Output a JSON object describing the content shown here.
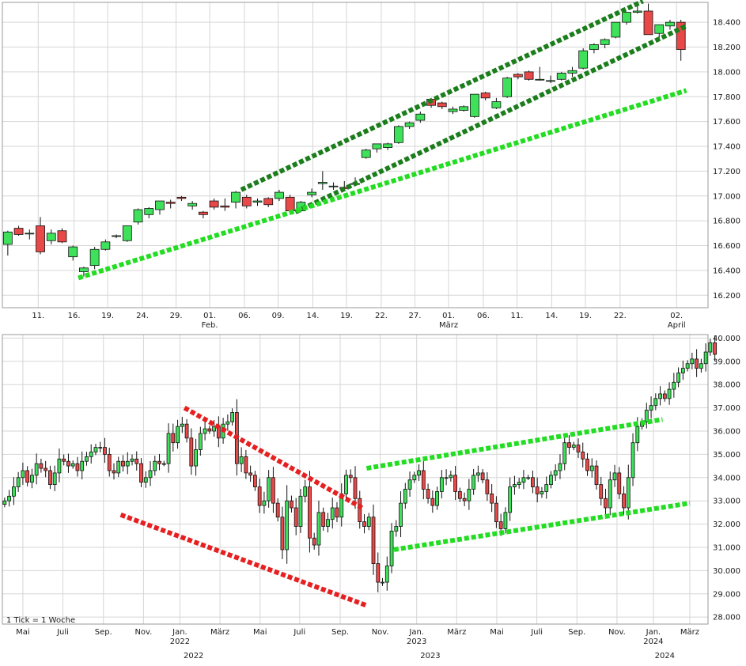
{
  "colors": {
    "up": "#3fe05a",
    "down": "#e84848",
    "grid": "#d6d6d6",
    "border": "#999999",
    "channel_dark": "#1b7d1b",
    "trend_light": "#22dd22",
    "trend_red": "#e62020",
    "label": "#1a1a1a",
    "footnote": "#9a9a9a"
  },
  "chart_data": [
    {
      "type": "candlestick",
      "name": "top-daily",
      "ylim": [
        16100,
        18560
      ],
      "y_ticks": [
        16200,
        16400,
        16600,
        16800,
        17000,
        17200,
        17400,
        17600,
        17800,
        18000,
        18200,
        18400
      ],
      "y_tick_labels": [
        "16.200",
        "16.400",
        "16.600",
        "16.800",
        "17.000",
        "17.200",
        "17.400",
        "17.600",
        "17.800",
        "18.000",
        "18.200",
        "18.400"
      ],
      "x_range": [
        0,
        65
      ],
      "x_ticks": [
        {
          "x": 3.3,
          "label": "11."
        },
        {
          "x": 6.6,
          "label": "16."
        },
        {
          "x": 9.7,
          "label": "19."
        },
        {
          "x": 12.9,
          "label": "24."
        },
        {
          "x": 16.0,
          "label": "29."
        },
        {
          "x": 19.1,
          "label": "01.",
          "sub": "Feb."
        },
        {
          "x": 22.3,
          "label": "06."
        },
        {
          "x": 25.4,
          "label": "09."
        },
        {
          "x": 28.6,
          "label": "14."
        },
        {
          "x": 31.7,
          "label": "19."
        },
        {
          "x": 34.9,
          "label": "22."
        },
        {
          "x": 38.0,
          "label": "27."
        },
        {
          "x": 41.1,
          "label": "01.",
          "sub": "März"
        },
        {
          "x": 44.3,
          "label": "06."
        },
        {
          "x": 47.4,
          "label": "11."
        },
        {
          "x": 50.6,
          "label": "14."
        },
        {
          "x": 53.7,
          "label": "19."
        },
        {
          "x": 56.9,
          "label": "22."
        },
        {
          "x": 62.1,
          "label": "02.",
          "sub": "April"
        }
      ],
      "candles": [
        {
          "x": 0,
          "o": 16610,
          "h": 16720,
          "l": 16520,
          "c": 16710
        },
        {
          "x": 1,
          "o": 16740,
          "h": 16760,
          "l": 16680,
          "c": 16690
        },
        {
          "x": 2,
          "o": 16700,
          "h": 16730,
          "l": 16650,
          "c": 16700
        },
        {
          "x": 3,
          "o": 16760,
          "h": 16830,
          "l": 16530,
          "c": 16550
        },
        {
          "x": 4,
          "o": 16640,
          "h": 16730,
          "l": 16610,
          "c": 16700
        },
        {
          "x": 5,
          "o": 16720,
          "h": 16740,
          "l": 16620,
          "c": 16630
        },
        {
          "x": 6,
          "o": 16510,
          "h": 16600,
          "l": 16480,
          "c": 16590
        },
        {
          "x": 7,
          "o": 16390,
          "h": 16430,
          "l": 16350,
          "c": 16420
        },
        {
          "x": 8,
          "o": 16440,
          "h": 16590,
          "l": 16410,
          "c": 16570
        },
        {
          "x": 9,
          "o": 16570,
          "h": 16650,
          "l": 16560,
          "c": 16630
        },
        {
          "x": 10,
          "o": 16680,
          "h": 16690,
          "l": 16660,
          "c": 16680
        },
        {
          "x": 11,
          "o": 16640,
          "h": 16760,
          "l": 16630,
          "c": 16760
        },
        {
          "x": 12,
          "o": 16790,
          "h": 16900,
          "l": 16770,
          "c": 16890
        },
        {
          "x": 13,
          "o": 16850,
          "h": 16910,
          "l": 16820,
          "c": 16900
        },
        {
          "x": 14,
          "o": 16890,
          "h": 16960,
          "l": 16850,
          "c": 16960
        },
        {
          "x": 15,
          "o": 16950,
          "h": 16970,
          "l": 16900,
          "c": 16940
        },
        {
          "x": 16,
          "o": 16990,
          "h": 17000,
          "l": 16960,
          "c": 16980
        },
        {
          "x": 17,
          "o": 16920,
          "h": 16960,
          "l": 16890,
          "c": 16940
        },
        {
          "x": 18,
          "o": 16870,
          "h": 16880,
          "l": 16820,
          "c": 16850
        },
        {
          "x": 19,
          "o": 16960,
          "h": 16980,
          "l": 16890,
          "c": 16910
        },
        {
          "x": 20,
          "o": 16920,
          "h": 16980,
          "l": 16880,
          "c": 16910
        },
        {
          "x": 21,
          "o": 16950,
          "h": 17040,
          "l": 16900,
          "c": 17030
        },
        {
          "x": 22,
          "o": 16990,
          "h": 17010,
          "l": 16900,
          "c": 16920
        },
        {
          "x": 23,
          "o": 16950,
          "h": 16980,
          "l": 16920,
          "c": 16960
        },
        {
          "x": 24,
          "o": 16980,
          "h": 16990,
          "l": 16910,
          "c": 16930
        },
        {
          "x": 25,
          "o": 16980,
          "h": 17050,
          "l": 16960,
          "c": 17030
        },
        {
          "x": 26,
          "o": 16990,
          "h": 17010,
          "l": 16870,
          "c": 16880
        },
        {
          "x": 27,
          "o": 16880,
          "h": 16960,
          "l": 16870,
          "c": 16950
        },
        {
          "x": 28,
          "o": 17010,
          "h": 17060,
          "l": 16990,
          "c": 17030
        },
        {
          "x": 29,
          "o": 17100,
          "h": 17200,
          "l": 17050,
          "c": 17110
        },
        {
          "x": 30,
          "o": 17080,
          "h": 17110,
          "l": 17050,
          "c": 17080
        },
        {
          "x": 31,
          "o": 17070,
          "h": 17120,
          "l": 17040,
          "c": 17060
        },
        {
          "x": 32,
          "o": 17100,
          "h": 17150,
          "l": 17080,
          "c": 17100
        },
        {
          "x": 33,
          "o": 17310,
          "h": 17380,
          "l": 17300,
          "c": 17370
        },
        {
          "x": 34,
          "o": 17380,
          "h": 17420,
          "l": 17350,
          "c": 17420
        },
        {
          "x": 35,
          "o": 17390,
          "h": 17430,
          "l": 17370,
          "c": 17420
        },
        {
          "x": 36,
          "o": 17430,
          "h": 17570,
          "l": 17420,
          "c": 17560
        },
        {
          "x": 37,
          "o": 17560,
          "h": 17600,
          "l": 17540,
          "c": 17590
        },
        {
          "x": 38,
          "o": 17610,
          "h": 17680,
          "l": 17590,
          "c": 17660
        },
        {
          "x": 39,
          "o": 17780,
          "h": 17790,
          "l": 17710,
          "c": 17730
        },
        {
          "x": 40,
          "o": 17750,
          "h": 17760,
          "l": 17700,
          "c": 17720
        },
        {
          "x": 41,
          "o": 17680,
          "h": 17720,
          "l": 17660,
          "c": 17700
        },
        {
          "x": 42,
          "o": 17690,
          "h": 17730,
          "l": 17680,
          "c": 17720
        },
        {
          "x": 43,
          "o": 17640,
          "h": 17820,
          "l": 17630,
          "c": 17820
        },
        {
          "x": 44,
          "o": 17830,
          "h": 17840,
          "l": 17770,
          "c": 17790
        },
        {
          "x": 45,
          "o": 17710,
          "h": 17790,
          "l": 17700,
          "c": 17760
        },
        {
          "x": 46,
          "o": 17800,
          "h": 17960,
          "l": 17790,
          "c": 17950
        },
        {
          "x": 47,
          "o": 17980,
          "h": 17990,
          "l": 17940,
          "c": 17960
        },
        {
          "x": 48,
          "o": 18000,
          "h": 18010,
          "l": 17930,
          "c": 17940
        },
        {
          "x": 49,
          "o": 17940,
          "h": 18040,
          "l": 17930,
          "c": 17940
        },
        {
          "x": 50,
          "o": 17930,
          "h": 17970,
          "l": 17910,
          "c": 17930
        },
        {
          "x": 51,
          "o": 17940,
          "h": 18000,
          "l": 17930,
          "c": 17990
        },
        {
          "x": 52,
          "o": 17990,
          "h": 18040,
          "l": 17960,
          "c": 18010
        },
        {
          "x": 53,
          "o": 18030,
          "h": 18190,
          "l": 18020,
          "c": 18170
        },
        {
          "x": 54,
          "o": 18180,
          "h": 18230,
          "l": 18150,
          "c": 18220
        },
        {
          "x": 55,
          "o": 18220,
          "h": 18270,
          "l": 18190,
          "c": 18260
        },
        {
          "x": 56,
          "o": 18280,
          "h": 18400,
          "l": 18270,
          "c": 18400
        },
        {
          "x": 57,
          "o": 18400,
          "h": 18480,
          "l": 18380,
          "c": 18480
        },
        {
          "x": 58,
          "o": 18480,
          "h": 18530,
          "l": 18470,
          "c": 18490
        },
        {
          "x": 59,
          "o": 18490,
          "h": 18550,
          "l": 18300,
          "c": 18300
        },
        {
          "x": 60,
          "o": 18310,
          "h": 18380,
          "l": 18270,
          "c": 18380
        },
        {
          "x": 61,
          "o": 18370,
          "h": 18420,
          "l": 18340,
          "c": 18400
        },
        {
          "x": 62,
          "o": 18400,
          "h": 18420,
          "l": 18090,
          "c": 18180
        }
      ],
      "trendlines": [
        {
          "style": "dark",
          "points": [
            [
              22,
              17050
            ],
            [
              59,
              18570
            ]
          ]
        },
        {
          "style": "dark",
          "points": [
            [
              27,
              16870
            ],
            [
              63,
              18370
            ]
          ]
        },
        {
          "style": "light",
          "points": [
            [
              7,
              16340
            ],
            [
              63,
              17850
            ]
          ]
        }
      ]
    },
    {
      "type": "candlestick",
      "name": "bottom-weekly",
      "ylim": [
        27700,
        40150
      ],
      "y_ticks": [
        28000,
        29000,
        30000,
        31000,
        32000,
        33000,
        34000,
        35000,
        36000,
        37000,
        38000,
        39000,
        40000
      ],
      "y_tick_labels": [
        "28.000",
        "29.000",
        "30.000",
        "31.000",
        "32.000",
        "33.000",
        "34.000",
        "35.000",
        "36.000",
        "37.000",
        "38.000",
        "39.000",
        "40.000"
      ],
      "x_range": [
        0,
        155
      ],
      "x_ticks": [
        {
          "x": 4.5,
          "label": "Mai"
        },
        {
          "x": 13.3,
          "label": "Juli"
        },
        {
          "x": 22.2,
          "label": "Sep."
        },
        {
          "x": 31.0,
          "label": "Nov."
        },
        {
          "x": 39.0,
          "label": "Jan.",
          "sub": "2022"
        },
        {
          "x": 47.8,
          "label": "März"
        },
        {
          "x": 56.6,
          "label": "Mai"
        },
        {
          "x": 65.3,
          "label": "Juli"
        },
        {
          "x": 74.2,
          "label": "Sep."
        },
        {
          "x": 83.0,
          "label": "Nov."
        },
        {
          "x": 91.0,
          "label": "Jan.",
          "sub": "2023"
        },
        {
          "x": 99.8,
          "label": "März"
        },
        {
          "x": 108.6,
          "label": "Mai"
        },
        {
          "x": 117.4,
          "label": "Juli"
        },
        {
          "x": 126.2,
          "label": "Sep."
        },
        {
          "x": 135.0,
          "label": "Nov."
        },
        {
          "x": 143.0,
          "label": "Jan.",
          "sub": "2024"
        },
        {
          "x": 151.0,
          "label": "März"
        }
      ],
      "years": [
        {
          "x": 42.0,
          "label": "2022"
        },
        {
          "x": 94.0,
          "label": "2023"
        },
        {
          "x": 145.5,
          "label": "2024"
        }
      ],
      "footnote": "1 Tick = 1 Woche",
      "closes": [
        33000,
        33200,
        33600,
        34000,
        34300,
        33800,
        34100,
        34600,
        34400,
        34300,
        33700,
        34200,
        34800,
        34700,
        34500,
        34600,
        34300,
        34700,
        34900,
        35100,
        35300,
        35300,
        35000,
        34300,
        34200,
        34700,
        34500,
        34700,
        34800,
        34600,
        33800,
        34000,
        34300,
        34700,
        34600,
        34600,
        35900,
        35500,
        36200,
        36300,
        35700,
        34500,
        35200,
        35900,
        36100,
        36000,
        36200,
        35700,
        36300,
        36400,
        36800,
        34600,
        34900,
        34200,
        34100,
        33600,
        32800,
        33000,
        34000,
        32900,
        32300,
        30900,
        33000,
        32700,
        31900,
        33200,
        33600,
        31400,
        31100,
        32500,
        31900,
        32200,
        32700,
        32300,
        33300,
        34100,
        34000,
        33100,
        32100,
        31900,
        32300,
        30300,
        29500,
        29500,
        30200,
        31700,
        31900,
        32900,
        33500,
        33900,
        34100,
        34300,
        33500,
        33100,
        32800,
        33400,
        34000,
        34000,
        34100,
        33400,
        33100,
        33000,
        33500,
        34100,
        34200,
        33900,
        33300,
        32900,
        32100,
        31800,
        32500,
        33600,
        33700,
        33800,
        34000,
        34000,
        33600,
        33300,
        33400,
        33700,
        34100,
        34300,
        34600,
        35500,
        35300,
        35400,
        35100,
        34800,
        34300,
        34500,
        33700,
        33100,
        32700,
        33900,
        34200,
        33300,
        32700,
        34000,
        35500,
        36200,
        36400,
        36900,
        37100,
        37400,
        37600,
        37400,
        37800,
        38100,
        38500,
        38700,
        38900,
        39100,
        38700,
        38900,
        39400,
        39800,
        39300
      ],
      "trendlines": [
        {
          "style": "red",
          "points": [
            [
              40,
              37000
            ],
            [
              79,
              32700
            ]
          ]
        },
        {
          "style": "red",
          "points": [
            [
              26,
              32400
            ],
            [
              80,
              28500
            ]
          ]
        },
        {
          "style": "light",
          "points": [
            [
              80,
              34400
            ],
            [
              145,
              36500
            ]
          ]
        },
        {
          "style": "light",
          "points": [
            [
              86,
              30900
            ],
            [
              151,
              32900
            ]
          ]
        }
      ]
    }
  ]
}
